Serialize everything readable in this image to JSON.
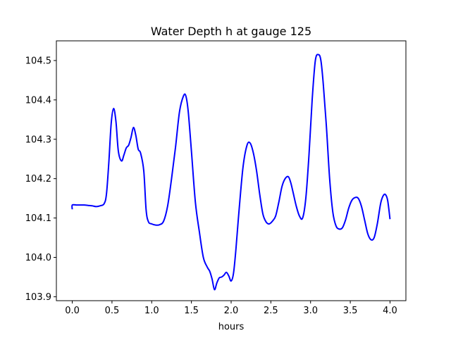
{
  "chart_data": {
    "type": "line",
    "title": "Water Depth h at gauge 125",
    "xlabel": "hours",
    "ylabel": "",
    "xlim": [
      -0.2,
      4.2
    ],
    "ylim": [
      103.89,
      104.55
    ],
    "x_ticks": [
      0.0,
      0.5,
      1.0,
      1.5,
      2.0,
      2.5,
      3.0,
      3.5,
      4.0
    ],
    "x_tick_labels": [
      "0.0",
      "0.5",
      "1.0",
      "1.5",
      "2.0",
      "2.5",
      "3.0",
      "3.5",
      "4.0"
    ],
    "y_ticks": [
      103.9,
      104.0,
      104.1,
      104.2,
      104.3,
      104.4,
      104.5
    ],
    "y_tick_labels": [
      "103.9",
      "104.0",
      "104.1",
      "104.2",
      "104.3",
      "104.4",
      "104.5"
    ],
    "grid": false,
    "series": [
      {
        "color": "#0000ff",
        "x": [
          0.0,
          0.0,
          0.05,
          0.1,
          0.15,
          0.2,
          0.25,
          0.3,
          0.35,
          0.4,
          0.43,
          0.46,
          0.49,
          0.52,
          0.55,
          0.58,
          0.62,
          0.65,
          0.68,
          0.71,
          0.74,
          0.77,
          0.8,
          0.83,
          0.86,
          0.9,
          0.93,
          0.96,
          1.0,
          1.05,
          1.1,
          1.15,
          1.2,
          1.25,
          1.3,
          1.35,
          1.4,
          1.43,
          1.46,
          1.5,
          1.55,
          1.6,
          1.65,
          1.7,
          1.73,
          1.76,
          1.79,
          1.82,
          1.85,
          1.88,
          1.91,
          1.94,
          1.97,
          2.0,
          2.03,
          2.06,
          2.1,
          2.15,
          2.2,
          2.24,
          2.28,
          2.32,
          2.36,
          2.4,
          2.44,
          2.48,
          2.52,
          2.56,
          2.6,
          2.64,
          2.68,
          2.72,
          2.75,
          2.78,
          2.82,
          2.86,
          2.9,
          2.94,
          2.98,
          3.02,
          3.06,
          3.1,
          3.13,
          3.16,
          3.2,
          3.24,
          3.28,
          3.32,
          3.36,
          3.4,
          3.44,
          3.48,
          3.52,
          3.56,
          3.6,
          3.64,
          3.68,
          3.72,
          3.76,
          3.8,
          3.84,
          3.88,
          3.91,
          3.94,
          3.97,
          4.0
        ],
        "y": [
          104.122,
          104.133,
          104.133,
          104.133,
          104.133,
          104.132,
          104.131,
          104.129,
          104.131,
          104.136,
          104.16,
          104.24,
          104.34,
          104.378,
          104.345,
          104.27,
          104.245,
          104.26,
          104.278,
          104.285,
          104.305,
          104.33,
          104.31,
          104.275,
          104.265,
          104.22,
          104.12,
          104.09,
          104.085,
          104.082,
          104.083,
          104.092,
          104.13,
          104.2,
          104.28,
          104.37,
          104.41,
          104.41,
          104.37,
          104.27,
          104.14,
          104.065,
          104.0,
          103.975,
          103.965,
          103.945,
          103.918,
          103.935,
          103.948,
          103.95,
          103.955,
          103.962,
          103.953,
          103.94,
          103.96,
          104.02,
          104.12,
          104.23,
          104.285,
          104.29,
          104.265,
          104.22,
          104.16,
          104.11,
          104.09,
          104.085,
          104.092,
          104.105,
          104.14,
          104.18,
          104.2,
          104.205,
          104.19,
          104.165,
          104.13,
          104.105,
          104.1,
          104.15,
          104.26,
          104.4,
          104.5,
          104.515,
          104.5,
          104.44,
          104.33,
          104.2,
          104.115,
          104.08,
          104.072,
          104.075,
          104.095,
          104.125,
          104.145,
          104.152,
          104.15,
          104.13,
          104.095,
          104.06,
          104.045,
          104.05,
          104.085,
          104.135,
          104.155,
          104.16,
          104.145,
          104.097
        ]
      }
    ]
  }
}
